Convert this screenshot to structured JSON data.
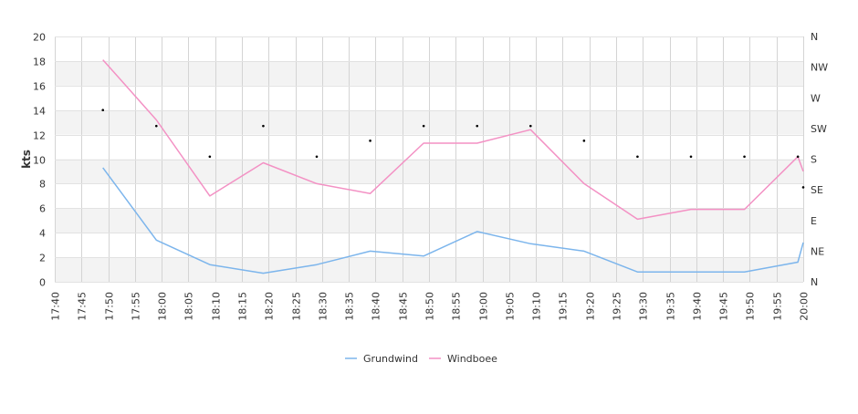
{
  "chart_data": {
    "type": "line",
    "title": "",
    "ylabel": "kts",
    "ylim": [
      0,
      20
    ],
    "y_ticks": [
      "0",
      "2",
      "4",
      "6",
      "8",
      "10",
      "12",
      "14",
      "16",
      "18",
      "20"
    ],
    "x_ticks": [
      "17:40",
      "17:45",
      "17:50",
      "17:55",
      "18:00",
      "18:05",
      "18:10",
      "18:15",
      "18:20",
      "18:25",
      "18:30",
      "18:35",
      "18:40",
      "18:45",
      "18:50",
      "18:55",
      "19:00",
      "19:05",
      "19:10",
      "19:15",
      "19:20",
      "19:25",
      "19:30",
      "19:35",
      "19:40",
      "19:45",
      "19:50",
      "19:55",
      "20:00"
    ],
    "x_range": [
      "17:40",
      "20:00"
    ],
    "y2_ticks": [
      "N",
      "NE",
      "E",
      "SE",
      "S",
      "SW",
      "W",
      "NW",
      "N"
    ],
    "grid": true,
    "legend_position": "bottom-center",
    "series": [
      {
        "name": "Grundwind",
        "color": "#7cb5ec",
        "x": [
          "17:49",
          "17:59",
          "18:09",
          "18:19",
          "18:29",
          "18:39",
          "18:49",
          "18:59",
          "19:09",
          "19:19",
          "19:29",
          "19:39",
          "19:49",
          "19:59",
          "20:00"
        ],
        "values": [
          9.3,
          3.4,
          1.4,
          0.7,
          1.4,
          2.5,
          2.1,
          4.1,
          3.1,
          2.5,
          0.8,
          0.8,
          0.8,
          1.6,
          3.2
        ]
      },
      {
        "name": "Windboee",
        "color": "#f391c4",
        "x": [
          "17:49",
          "17:59",
          "18:09",
          "18:19",
          "18:29",
          "18:39",
          "18:49",
          "18:59",
          "19:09",
          "19:19",
          "19:29",
          "19:39",
          "19:49",
          "19:59",
          "20:00"
        ],
        "values": [
          18.1,
          13.2,
          7.0,
          9.7,
          8.0,
          7.2,
          11.3,
          11.3,
          12.4,
          8.0,
          5.1,
          5.9,
          5.9,
          10.2,
          9.0
        ]
      }
    ],
    "direction_markers": {
      "color": "#000000",
      "x": [
        "17:49",
        "17:59",
        "18:09",
        "18:19",
        "18:29",
        "18:39",
        "18:49",
        "18:59",
        "19:09",
        "19:19",
        "19:29",
        "19:39",
        "19:49",
        "19:59",
        "20:00"
      ],
      "direction": [
        "SW",
        "SW",
        "S",
        "SW",
        "S",
        "SW",
        "SW",
        "SW",
        "SW",
        "SW",
        "S",
        "S",
        "S",
        "S",
        "SE"
      ],
      "values": [
        14,
        12.7,
        10.2,
        12.7,
        10.2,
        11.5,
        12.7,
        12.7,
        12.7,
        11.5,
        10.2,
        10.2,
        10.2,
        10.2,
        7.7
      ]
    }
  }
}
